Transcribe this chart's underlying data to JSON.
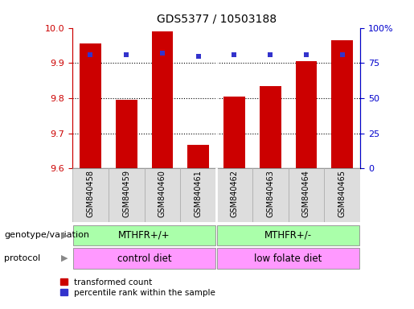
{
  "title": "GDS5377 / 10503188",
  "samples": [
    "GSM840458",
    "GSM840459",
    "GSM840460",
    "GSM840461",
    "GSM840462",
    "GSM840463",
    "GSM840464",
    "GSM840465"
  ],
  "bar_values": [
    9.955,
    9.795,
    9.99,
    9.668,
    9.805,
    9.835,
    9.905,
    9.965
  ],
  "dot_values": [
    81,
    81,
    82,
    80,
    81,
    81,
    81,
    81
  ],
  "ylim_left": [
    9.6,
    10.0
  ],
  "ylim_right": [
    0,
    100
  ],
  "yticks_left": [
    9.6,
    9.7,
    9.8,
    9.9,
    10.0
  ],
  "yticks_right": [
    0,
    25,
    50,
    75,
    100
  ],
  "bar_color": "#cc0000",
  "dot_color": "#3333cc",
  "bar_bottom": 9.6,
  "genotype_labels": [
    "MTHFR+/+",
    "MTHFR+/-"
  ],
  "genotype_color": "#aaffaa",
  "protocol_labels": [
    "control diet",
    "low folate diet"
  ],
  "protocol_color": "#ff99ff",
  "legend_bar_label": "transformed count",
  "legend_dot_label": "percentile rank within the sample",
  "left_label_genotype": "genotype/variation",
  "left_label_protocol": "protocol",
  "tick_color_left": "#cc0000",
  "tick_color_right": "#0000cc",
  "xtick_bg_color": "#dddddd",
  "xtick_border_color": "#aaaaaa"
}
